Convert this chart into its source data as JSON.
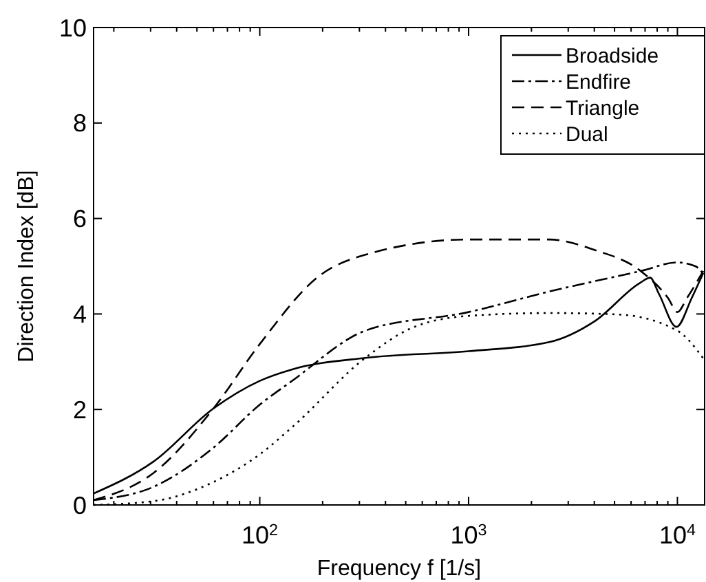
{
  "chart_data": {
    "type": "line",
    "xlabel": "Frequency f [1/s]",
    "ylabel": "Direction Index [dB]",
    "log": "x",
    "xlim": [
      16,
      13500
    ],
    "ylim": [
      0,
      10
    ],
    "xticks": [
      {
        "value": 20,
        "label": null
      },
      {
        "value": 30,
        "label": null
      },
      {
        "value": 40,
        "label": null
      },
      {
        "value": 50,
        "label": null
      },
      {
        "value": 60,
        "label": null
      },
      {
        "value": 70,
        "label": null
      },
      {
        "value": 80,
        "label": null
      },
      {
        "value": 90,
        "label": null
      },
      {
        "value": 100,
        "label": "10$^{2}$"
      },
      {
        "value": 200,
        "label": null
      },
      {
        "value": 300,
        "label": null
      },
      {
        "value": 400,
        "label": null
      },
      {
        "value": 500,
        "label": null
      },
      {
        "value": 600,
        "label": null
      },
      {
        "value": 700,
        "label": null
      },
      {
        "value": 800,
        "label": null
      },
      {
        "value": 900,
        "label": null
      },
      {
        "value": 1000,
        "label": "10$^{3}$"
      },
      {
        "value": 2000,
        "label": null
      },
      {
        "value": 3000,
        "label": null
      },
      {
        "value": 4000,
        "label": null
      },
      {
        "value": 5000,
        "label": null
      },
      {
        "value": 6000,
        "label": null
      },
      {
        "value": 7000,
        "label": null
      },
      {
        "value": 8000,
        "label": null
      },
      {
        "value": 9000,
        "label": null
      },
      {
        "value": 10000,
        "label": "10$^{4}$"
      }
    ],
    "yticks": [
      0,
      2,
      4,
      6,
      8,
      10
    ],
    "grid": false,
    "legend": "top right",
    "marker": "none",
    "series": [
      {
        "name": "Broadside",
        "color": "#000000",
        "line_style": "solid",
        "x": [
          16,
          31,
          60,
          100,
          143,
          320,
          1000,
          2430,
          4020,
          6670,
          7400,
          8160,
          9900,
          11700,
          13300
        ],
        "values": [
          0.24,
          0.91,
          2.02,
          2.6,
          2.84,
          3.08,
          3.22,
          3.41,
          3.85,
          4.66,
          4.76,
          4.42,
          3.73,
          4.33,
          4.86
        ]
      },
      {
        "name": "Endfire",
        "color": "#000000",
        "line_style": "dashdot",
        "x": [
          16,
          31,
          60,
          100,
          143,
          320,
          1000,
          2430,
          6670,
          10000,
          12200,
          13500
        ],
        "values": [
          0.1,
          0.38,
          1.2,
          2.1,
          2.6,
          3.65,
          4.04,
          4.47,
          4.9,
          5.08,
          5.0,
          4.8
        ]
      },
      {
        "name": "Triangle",
        "color": "#000000",
        "line_style": "dashed",
        "x": [
          16,
          31,
          60,
          100,
          193,
          320,
          1000,
          2430,
          4020,
          6670,
          9030,
          10000,
          11100,
          13300
        ],
        "values": [
          0.1,
          0.67,
          2.02,
          3.37,
          4.8,
          5.24,
          5.56,
          5.56,
          5.34,
          4.9,
          4.33,
          4.04,
          4.33,
          4.9
        ]
      },
      {
        "name": "Dual",
        "color": "#000000",
        "line_style": "dotted",
        "x": [
          16,
          31,
          60,
          100,
          143,
          320,
          530,
          1000,
          2430,
          5180,
          10000,
          13500
        ],
        "values": [
          0,
          0.08,
          0.48,
          1.06,
          1.63,
          3.08,
          3.7,
          3.96,
          4.02,
          3.99,
          3.65,
          3.03
        ]
      }
    ]
  }
}
